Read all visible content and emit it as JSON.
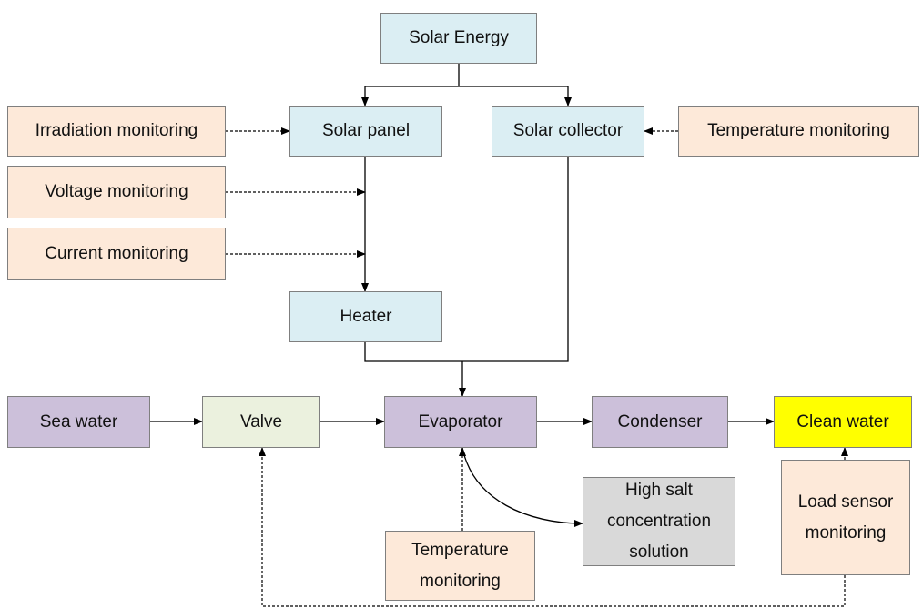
{
  "nodes": [
    {
      "label": "Solar Energy"
    },
    {
      "label": "Irradiation monitoring"
    },
    {
      "label": "Solar panel"
    },
    {
      "label": "Solar collector"
    },
    {
      "label": "Temperature monitoring"
    },
    {
      "label": "Voltage monitoring"
    },
    {
      "label": "Current monitoring"
    },
    {
      "label": "Heater"
    },
    {
      "label": "Sea water"
    },
    {
      "label": "Valve"
    },
    {
      "label": "Evaporator"
    },
    {
      "label": "Condenser"
    },
    {
      "label": "Clean water"
    },
    {
      "label": "High salt concentration solution"
    },
    {
      "label": "Load sensor monitoring"
    },
    {
      "label": "Temperature monitoring"
    }
  ]
}
